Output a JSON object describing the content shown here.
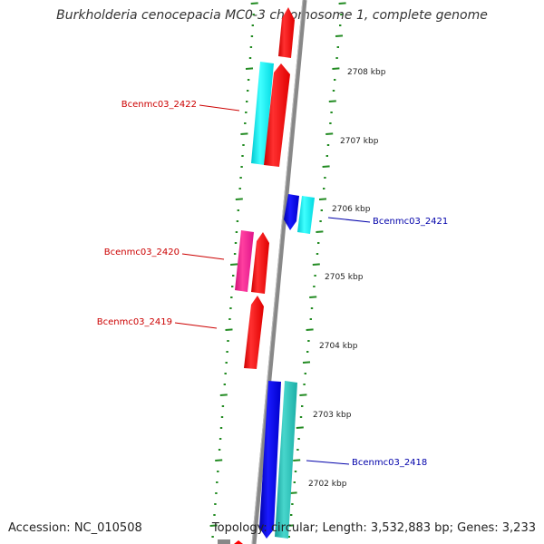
{
  "title": "Burkholderia cenocepacia MC0-3 chromosome 1, complete genome",
  "footer": {
    "accession": "Accession: NC_010508",
    "summary": "Topology: circular; Length: 3,532,883 bp; Genes: 3,233"
  },
  "colors": {
    "background": "#ffffff",
    "backbone": "#888888",
    "tick": "#228b22",
    "forward_label": "#cc0000",
    "reverse_label": "#0000aa",
    "cds_forward": "#ff0000",
    "cds_reverse": "#0000ee",
    "gene_cyan": "#00e5ee",
    "gene_teal": "#20b2aa",
    "gene_pink": "#ff1493"
  },
  "scale_labels": [
    "2708 kbp",
    "2707 kbp",
    "2706 kbp",
    "2705 kbp",
    "2704 kbp",
    "2703 kbp",
    "2702 kbp"
  ],
  "gene_labels": [
    {
      "label": "Bcenmc03_2422",
      "strand": "forward"
    },
    {
      "label": "Bcenmc03_2421",
      "strand": "reverse"
    },
    {
      "label": "Bcenmc03_2420",
      "strand": "forward"
    },
    {
      "label": "Bcenmc03_2419",
      "strand": "forward"
    },
    {
      "label": "Bcenmc03_2418",
      "strand": "reverse"
    }
  ],
  "features": [
    {
      "name": "cds-top-forward",
      "strand": "forward",
      "kind": "cds"
    },
    {
      "name": "gene-2422-cyan",
      "strand": "forward",
      "kind": "gene"
    },
    {
      "name": "cds-2422-forward",
      "strand": "forward",
      "kind": "cds"
    },
    {
      "name": "cds-2421-reverse",
      "strand": "reverse",
      "kind": "cds"
    },
    {
      "name": "gene-2421-cyan",
      "strand": "reverse",
      "kind": "gene"
    },
    {
      "name": "gene-2420-pink",
      "strand": "forward",
      "kind": "gene"
    },
    {
      "name": "cds-2420-forward",
      "strand": "forward",
      "kind": "cds"
    },
    {
      "name": "cds-2419-forward",
      "strand": "forward",
      "kind": "cds"
    },
    {
      "name": "cds-2418-reverse",
      "strand": "reverse",
      "kind": "cds"
    },
    {
      "name": "gene-2418-teal",
      "strand": "reverse",
      "kind": "gene"
    }
  ]
}
